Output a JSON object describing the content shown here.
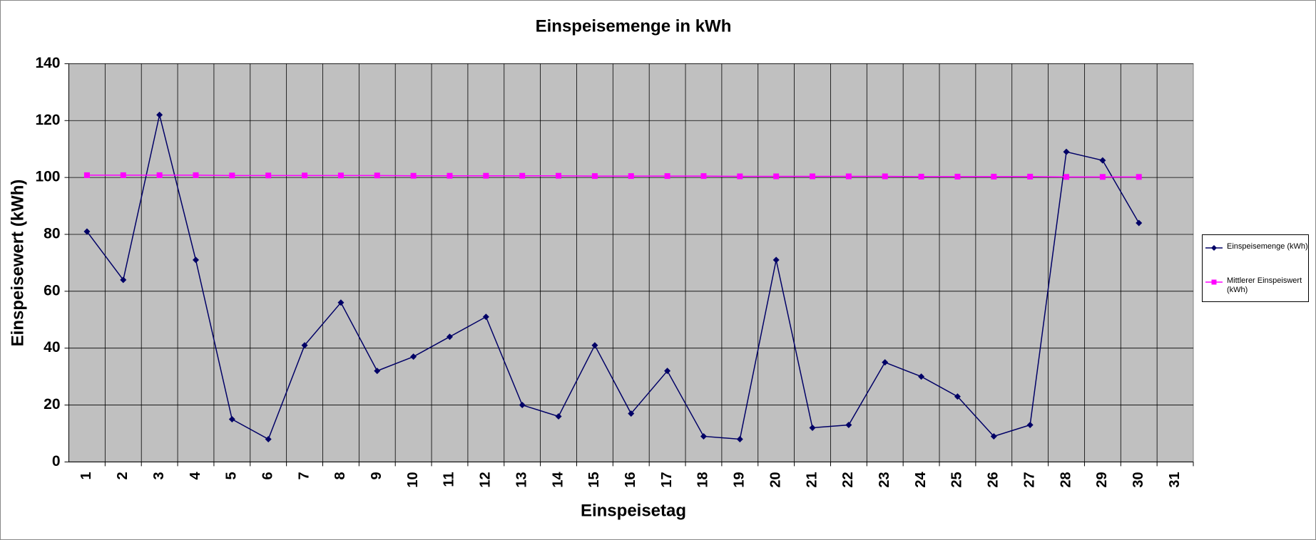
{
  "chart_data": {
    "type": "line",
    "title": "Einspeisemenge in kWh",
    "x_label": "Einspeisetag",
    "y_label": "Einspeisewert  (kWh)",
    "categories": [
      "1",
      "2",
      "3",
      "4",
      "5",
      "6",
      "7",
      "8",
      "9",
      "10",
      "11",
      "12",
      "13",
      "14",
      "15",
      "16",
      "17",
      "18",
      "19",
      "20",
      "21",
      "22",
      "23",
      "24",
      "25",
      "26",
      "27",
      "28",
      "29",
      "30",
      "31"
    ],
    "series": [
      {
        "name": "Einspeisemenge (kWh)",
        "color": "#000066",
        "marker": "diamond",
        "values": [
          81,
          64,
          122,
          71,
          15,
          8,
          41,
          56,
          32,
          37,
          44,
          51,
          20,
          16,
          41,
          17,
          32,
          9,
          8,
          71,
          12,
          13,
          35,
          30,
          23,
          9,
          13,
          109,
          106,
          84,
          null
        ]
      },
      {
        "name": "Mittlerer Einspeiswert (kWh)",
        "color": "#ff00ff",
        "marker": "square",
        "values": [
          100.8,
          100.8,
          100.8,
          100.8,
          100.7,
          100.7,
          100.7,
          100.7,
          100.7,
          100.6,
          100.6,
          100.6,
          100.6,
          100.6,
          100.5,
          100.5,
          100.5,
          100.5,
          100.4,
          100.4,
          100.4,
          100.4,
          100.4,
          100.3,
          100.3,
          100.3,
          100.3,
          100.2,
          100.2,
          100.2,
          null
        ]
      }
    ],
    "ylim": [
      0,
      140
    ],
    "yticks": [
      0,
      20,
      40,
      60,
      80,
      100,
      120,
      140
    ],
    "grid": true,
    "legend": "right"
  }
}
